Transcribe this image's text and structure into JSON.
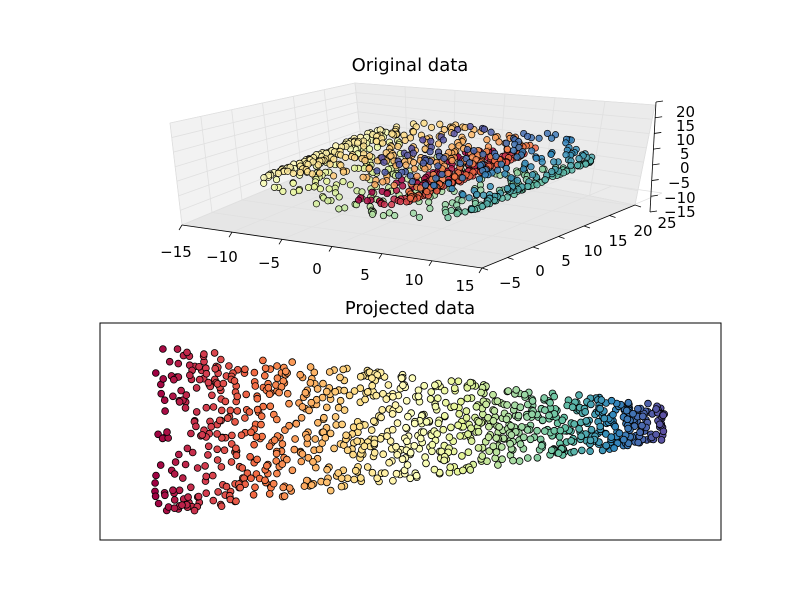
{
  "chart_data": [
    {
      "type": "scatter",
      "projection": "3d",
      "title": "Original data",
      "colormap": "Spectral",
      "grid": true,
      "x_ticks": [
        "−15",
        "−10",
        "−5",
        "0",
        "5",
        "10",
        "15"
      ],
      "y_ticks": [
        "−5",
        "0",
        "5",
        "10",
        "15",
        "20",
        "25"
      ],
      "z_ticks": [
        "−15",
        "−10",
        "−5",
        "0",
        "5",
        "10",
        "15",
        "20"
      ],
      "xlim": [
        -15,
        15
      ],
      "ylim": [
        -5,
        25
      ],
      "zlim": [
        -15,
        20
      ],
      "description_shape": "swiss roll"
    },
    {
      "type": "scatter",
      "title": "Projected data",
      "colormap": "Spectral",
      "x_ticks": [],
      "y_ticks": [],
      "description_shape": "tapered band, wide on left narrowing to right"
    }
  ],
  "colors": {
    "spectral": [
      "#9e0142",
      "#d53e4f",
      "#f46d43",
      "#fdae61",
      "#fee08b",
      "#ffffbf",
      "#e6f598",
      "#abdda4",
      "#66c2a5",
      "#3288bd",
      "#5e4fa2"
    ],
    "marker_edge": "#000000",
    "pane_fill": "#f2f2f2",
    "grid_line": "#e0e0e0"
  }
}
